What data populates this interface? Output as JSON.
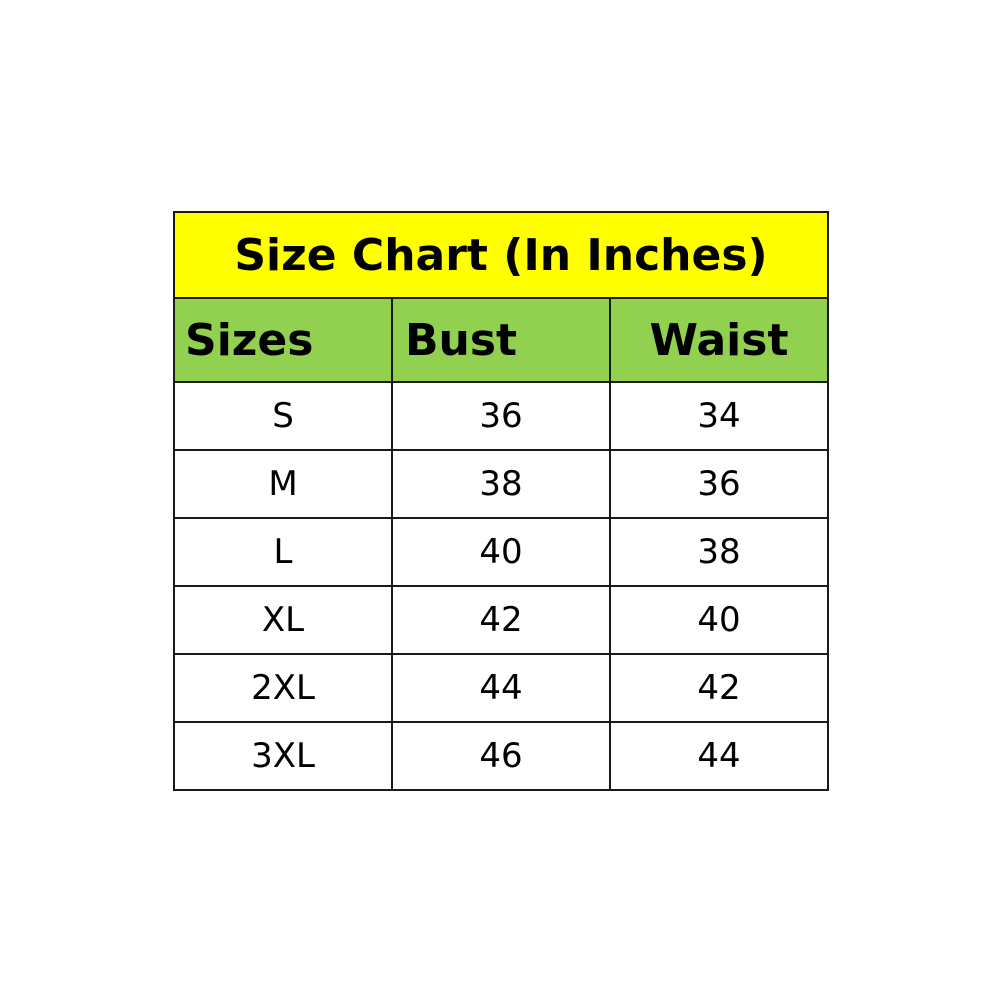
{
  "title": "Size Chart (In Inches)",
  "colors": {
    "title_bg": "#ffff00",
    "header_bg": "#92d050"
  },
  "headers": [
    "Sizes",
    "Bust",
    "Waist"
  ],
  "rows": [
    [
      "S",
      "36",
      "34"
    ],
    [
      "M",
      "38",
      "36"
    ],
    [
      "L",
      "40",
      "38"
    ],
    [
      "XL",
      "42",
      "40"
    ],
    [
      "2XL",
      "44",
      "42"
    ],
    [
      "3XL",
      "46",
      "44"
    ]
  ]
}
